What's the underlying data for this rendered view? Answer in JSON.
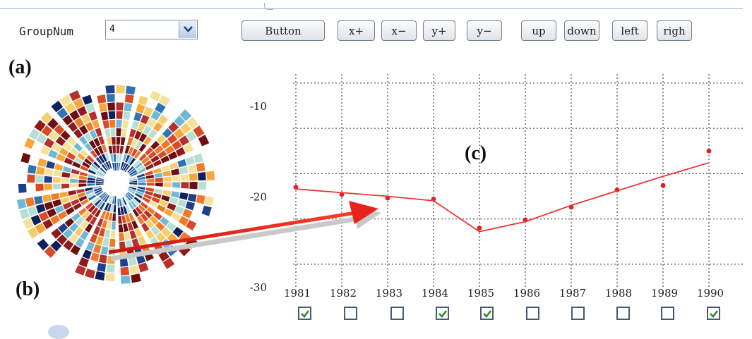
{
  "toolbar": {
    "group_label": "GroupNum",
    "group_value": "4",
    "buttons": [
      "Button",
      "x+",
      "x−",
      "y+",
      "y−",
      "up",
      "down",
      "left",
      "righ"
    ]
  },
  "panels": {
    "a": "(a)",
    "b": "(b)",
    "c": "(c)"
  },
  "chart_data": {
    "type": "line",
    "x": [
      1981,
      1982,
      1983,
      1984,
      1985,
      1986,
      1987,
      1988,
      1989,
      1990
    ],
    "categories": [
      "1981",
      "1982",
      "1983",
      "1984",
      "1985",
      "1986",
      "1987",
      "1988",
      "1989",
      "1990"
    ],
    "series": [
      {
        "values": [
          -19.0,
          -19.8,
          -20.2,
          -20.3,
          -23.5,
          -22.6,
          -21.2,
          -19.3,
          -18.8,
          -15.0
        ]
      },
      {
        "values": [
          -19.2,
          -19.6,
          -20.0,
          -20.5,
          -23.9,
          -22.8,
          -21.0,
          -19.4,
          -17.8,
          -16.3
        ]
      }
    ],
    "yticks": [
      "-10",
      "-20",
      "-30"
    ],
    "ylim": [
      -30,
      -6.5
    ],
    "grid": true,
    "colors": {
      "line": "#ee3333",
      "points": "#dd2222",
      "grid": "#555555"
    }
  },
  "checkboxes": [
    true,
    false,
    false,
    true,
    true,
    false,
    false,
    false,
    false,
    true
  ]
}
